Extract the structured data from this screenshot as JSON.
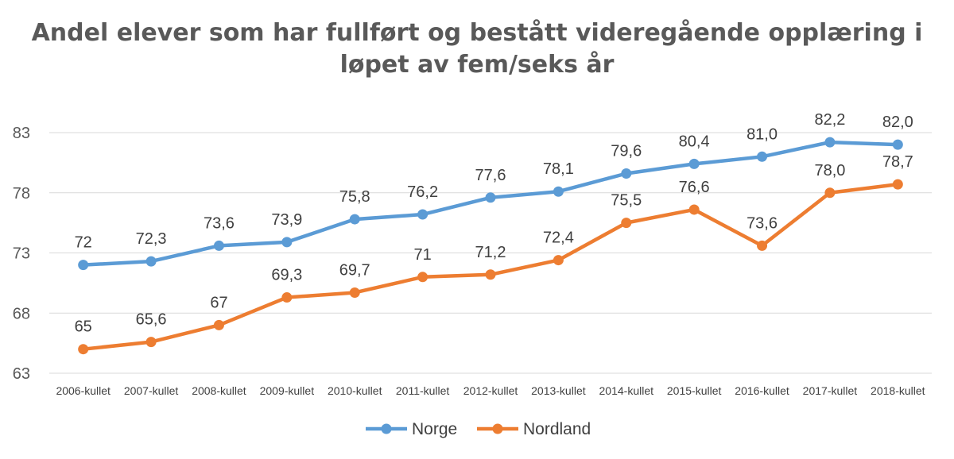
{
  "chart_data": {
    "type": "line",
    "title_lines": [
      "Andel elever som har fullført og bestått videregående opplæring i",
      "løpet av fem/seks år"
    ],
    "categories": [
      "2006-kullet",
      "2007-kullet",
      "2008-kullet",
      "2009-kullet",
      "2010-kullet",
      "2011-kullet",
      "2012-kullet",
      "2013-kullet",
      "2014-kullet",
      "2015-kullet",
      "2016-kullet",
      "2017-kullet",
      "2018-kullet"
    ],
    "ylim": [
      63,
      83
    ],
    "yticks": [
      63,
      68,
      73,
      78,
      83
    ],
    "ytick_labels": [
      "63",
      "68",
      "73",
      "78",
      "83"
    ],
    "grid": true,
    "legend_position": "bottom",
    "series": [
      {
        "name": "Norge",
        "color": "#5B9BD5",
        "values": [
          72,
          72.3,
          73.6,
          73.9,
          75.8,
          76.2,
          77.6,
          78.1,
          79.6,
          80.4,
          81.0,
          82.2,
          82.0
        ],
        "labels": [
          "72",
          "72,3",
          "73,6",
          "73,9",
          "75,8",
          "76,2",
          "77,6",
          "78,1",
          "79,6",
          "80,4",
          "81,0",
          "82,2",
          "82,0"
        ]
      },
      {
        "name": "Nordland",
        "color": "#ED7D31",
        "values": [
          65,
          65.6,
          67,
          69.3,
          69.7,
          71,
          71.2,
          72.4,
          75.5,
          76.6,
          73.6,
          78.0,
          78.7
        ],
        "labels": [
          "65",
          "65,6",
          "67",
          "69,3",
          "69,7",
          "71",
          "71,2",
          "72,4",
          "75,5",
          "76,6",
          "73,6",
          "78,0",
          "78,7"
        ]
      }
    ]
  }
}
